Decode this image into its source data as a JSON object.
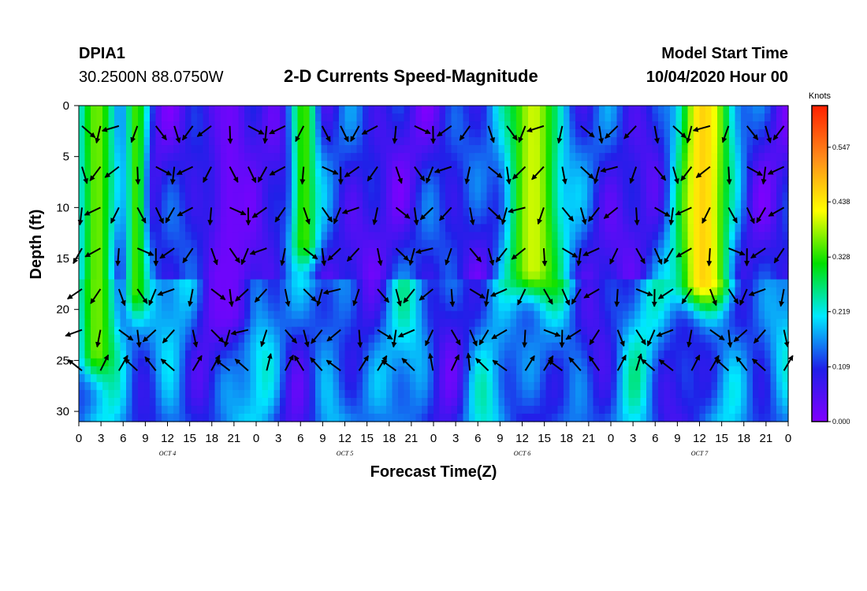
{
  "header": {
    "station_id": "DPIA1",
    "coordinates": "30.2500N 88.0750W",
    "title": "2-D Currents Speed-Magnitude",
    "model_start_label": "Model Start Time",
    "model_start_value": "10/04/2020 Hour 00"
  },
  "chart_data": {
    "type": "heatmap",
    "subtype": "contour-fill with current vectors",
    "title": "2-D Currents Speed-Magnitude",
    "xlabel": "Forecast Time(Z)",
    "ylabel": "Depth (ft)",
    "x_tick_labels": [
      "0",
      "3",
      "6",
      "9",
      "12",
      "15",
      "18",
      "21",
      "0",
      "3",
      "6",
      "9",
      "12",
      "15",
      "18",
      "21",
      "0",
      "3",
      "6",
      "9",
      "12",
      "15",
      "18",
      "21",
      "0",
      "3",
      "6",
      "9",
      "12",
      "15",
      "18",
      "21",
      "0"
    ],
    "xlim_hours": [
      0,
      96
    ],
    "day_labels": [
      {
        "label": "OCT 4",
        "center_hour": 12
      },
      {
        "label": "OCT 5",
        "center_hour": 36
      },
      {
        "label": "OCT 6",
        "center_hour": 60
      },
      {
        "label": "OCT 7",
        "center_hour": 84
      }
    ],
    "y_ticks": [
      0,
      5,
      10,
      15,
      20,
      25,
      30
    ],
    "ylim_ft": [
      0,
      31
    ],
    "y_inverted": true,
    "colorbar": {
      "title": "Knots",
      "tick_labels": [
        "0.000",
        "0.109",
        "0.219",
        "0.328",
        "0.438",
        "0.547"
      ],
      "tick_values": [
        0.0,
        0.109,
        0.219,
        0.328,
        0.438,
        0.547
      ],
      "range": [
        0.0,
        0.63
      ],
      "colors": [
        "#8000ff",
        "#2020e8",
        "#00e8ff",
        "#00e000",
        "#ffff00",
        "#ff8c1a",
        "#ff2000"
      ]
    },
    "speed_regions": [
      {
        "name": "early surface jet",
        "center_hour": 2.5,
        "width_hours": 3,
        "max_depth_ft": 24,
        "speed_knots": 0.36
      },
      {
        "name": "OCT4 morning jet",
        "center_hour": 7.8,
        "width_hours": 1.8,
        "max_depth_ft": 18,
        "speed_knots": 0.34
      },
      {
        "name": "OCT5 dawn jet",
        "center_hour": 30.5,
        "width_hours": 2.2,
        "max_depth_ft": 13,
        "speed_knots": 0.34
      },
      {
        "name": "OCT6 main jet",
        "center_hour": 61.5,
        "width_hours": 4.8,
        "max_depth_ft": 16,
        "speed_knots": 0.4
      },
      {
        "name": "OCT7 main jet",
        "center_hour": 84.5,
        "width_hours": 4.5,
        "max_depth_ft": 17,
        "speed_knots": 0.46
      },
      {
        "name": "OCT4 calm core",
        "center_hour": 20.5,
        "width_hours": 3.5,
        "max_depth_ft": 20,
        "speed_knots": 0.02
      }
    ]
  }
}
